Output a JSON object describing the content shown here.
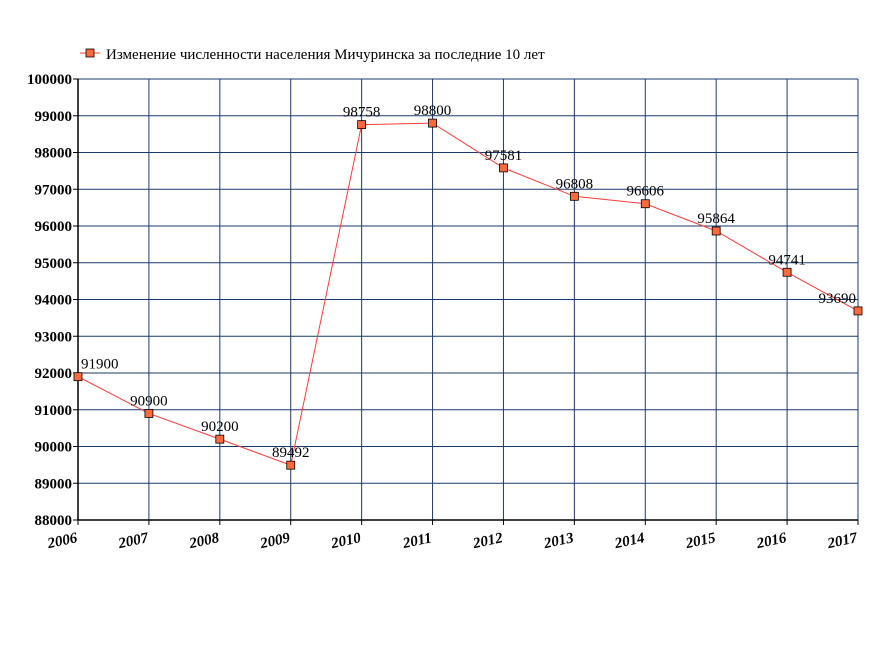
{
  "chart_data": {
    "type": "line",
    "title": "",
    "xlabel": "",
    "ylabel": "",
    "categories": [
      "2006",
      "2007",
      "2008",
      "2009",
      "2010",
      "2011",
      "2012",
      "2013",
      "2014",
      "2015",
      "2016",
      "2017"
    ],
    "series": [
      {
        "name": "Изменение численности населения Мичуринска за последние 10 лет",
        "values": [
          91900,
          90900,
          90200,
          89492,
          98758,
          98800,
          97581,
          96808,
          96606,
          95864,
          94741,
          93690
        ],
        "data_labels": [
          "91900",
          "90900",
          "90200",
          "89492",
          "98758",
          "98800",
          "97581",
          "96808",
          "96606",
          "95864",
          "94741",
          "93690"
        ]
      }
    ],
    "ylim": [
      88000,
      100000
    ],
    "yticks": [
      "88000",
      "89000",
      "90000",
      "91000",
      "92000",
      "93000",
      "94000",
      "95000",
      "96000",
      "97000",
      "98000",
      "99000",
      "100000"
    ],
    "grid": true,
    "legend_position": "top",
    "colors": {
      "line": "#ff3b3b",
      "marker_fill": "#ff6a3d",
      "marker_stroke": "#000000",
      "grid": "#1a3a6b",
      "axis": "#000000"
    }
  }
}
